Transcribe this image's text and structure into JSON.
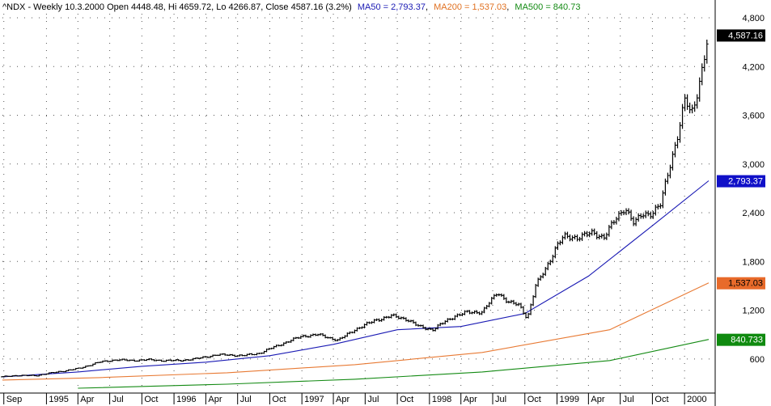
{
  "header": {
    "ticker_info": "^NDX - Weekly 10.3.2000 Open 4448.48, Hi 4659.72, Lo 4266.87, Close 4587.16 (3.2%)",
    "ma50_label": "MA50 = 2,793.37",
    "ma200_label": "MA200 = 1,537.03",
    "ma500_label": "MA500 = 840.73",
    "separator": ","
  },
  "colors": {
    "price": "#000000",
    "ma50": "#1a1ab4",
    "ma200": "#e87a34",
    "ma500": "#138a13",
    "ma50_tag_bg": "#1010c8",
    "ma200_tag_bg": "#e86a2a",
    "ma500_tag_bg": "#0f8a0f",
    "last_tag_bg": "#000000",
    "grid": "#555555"
  },
  "chart_data": {
    "type": "line",
    "title": "^NDX - Weekly 10.3.2000",
    "scale": "linear",
    "ylim": [
      200,
      4850
    ],
    "x_range": [
      "1994-08-28",
      "2000-03-24"
    ],
    "grid": true,
    "yticks": [
      "4,800",
      "4,200",
      "3,600",
      "3,000",
      "2,400",
      "1,800",
      "1,200",
      "600"
    ],
    "ytick_values": [
      4800,
      4200,
      3600,
      3000,
      2400,
      1800,
      1200,
      600
    ],
    "xticks": [
      "Sep",
      "1995",
      "Apr",
      "Jul",
      "Oct",
      "1996",
      "Apr",
      "Jul",
      "Oct",
      "1997",
      "Apr",
      "Jul",
      "Oct",
      "1998",
      "Apr",
      "Jul",
      "Oct",
      "1999",
      "Apr",
      "Jul",
      "Oct",
      "2000"
    ],
    "xtick_dates": [
      "1994-09-01",
      "1995-01-01",
      "1995-04-01",
      "1995-07-01",
      "1995-10-01",
      "1996-01-01",
      "1996-04-01",
      "1996-07-01",
      "1996-10-01",
      "1997-01-01",
      "1997-04-01",
      "1997-07-01",
      "1997-10-01",
      "1998-01-01",
      "1998-04-01",
      "1998-07-01",
      "1998-10-01",
      "1999-01-01",
      "1999-04-01",
      "1999-07-01",
      "1999-10-01",
      "2000-01-01"
    ],
    "last_value_tags": [
      "4,587.16",
      "2,793.37",
      "1,537.03",
      "840.733"
    ],
    "series": [
      {
        "name": "^NDX",
        "x": [
          "1994-08-28",
          "1994-10-01",
          "1994-12-01",
          "1995-02-01",
          "1995-04-01",
          "1995-06-01",
          "1995-07-20",
          "1995-09-01",
          "1995-10-15",
          "1995-12-01",
          "1996-01-15",
          "1996-03-01",
          "1996-05-01",
          "1996-06-01",
          "1996-07-15",
          "1996-09-01",
          "1996-11-01",
          "1997-01-01",
          "1997-02-15",
          "1997-04-15",
          "1997-06-01",
          "1997-08-01",
          "1997-09-15",
          "1997-10-28",
          "1997-12-01",
          "1998-01-10",
          "1998-02-15",
          "1998-03-15",
          "1998-04-15",
          "1998-06-01",
          "1998-07-15",
          "1998-08-15",
          "1998-09-15",
          "1998-10-08",
          "1998-11-01",
          "1998-12-01",
          "1999-01-01",
          "1999-01-20",
          "1999-03-01",
          "1999-04-15",
          "1999-05-15",
          "1999-06-15",
          "1999-07-15",
          "1999-08-10",
          "1999-09-01",
          "1999-10-01",
          "1999-10-25",
          "1999-11-15",
          "1999-12-15",
          "2000-01-03",
          "2000-01-20",
          "2000-02-10",
          "2000-03-10"
        ],
        "values": [
          380,
          395,
          395,
          440,
          480,
          560,
          590,
          580,
          590,
          580,
          580,
          600,
          650,
          650,
          640,
          670,
          780,
          880,
          900,
          830,
          960,
          1080,
          1130,
          1090,
          1000,
          960,
          1060,
          1130,
          1170,
          1180,
          1420,
          1300,
          1260,
          1100,
          1500,
          1720,
          2000,
          2100,
          2100,
          2150,
          2100,
          2300,
          2470,
          2260,
          2380,
          2400,
          2500,
          2900,
          3400,
          3800,
          3600,
          3950,
          4587
        ]
      },
      {
        "name": "MA50",
        "x": [
          "1994-08-28",
          "1995-04-01",
          "1995-10-01",
          "1996-04-01",
          "1996-10-01",
          "1997-04-01",
          "1997-10-01",
          "1998-04-01",
          "1998-10-01",
          "1999-04-01",
          "1999-10-01",
          "2000-03-10"
        ],
        "values": [
          380,
          440,
          510,
          560,
          640,
          780,
          960,
          1000,
          1160,
          1620,
          2240,
          2793.37
        ]
      },
      {
        "name": "MA200",
        "x": [
          "1994-08-28",
          "1995-06-01",
          "1996-06-01",
          "1997-06-01",
          "1998-06-01",
          "1999-06-01",
          "2000-03-10"
        ],
        "values": [
          340,
          370,
          430,
          530,
          680,
          960,
          1537.03
        ]
      },
      {
        "name": "MA500",
        "x": [
          "1995-04-01",
          "1996-06-01",
          "1997-06-01",
          "1998-06-01",
          "1999-06-01",
          "2000-03-10"
        ],
        "values": [
          240,
          290,
          350,
          440,
          580,
          840.733
        ]
      }
    ]
  }
}
